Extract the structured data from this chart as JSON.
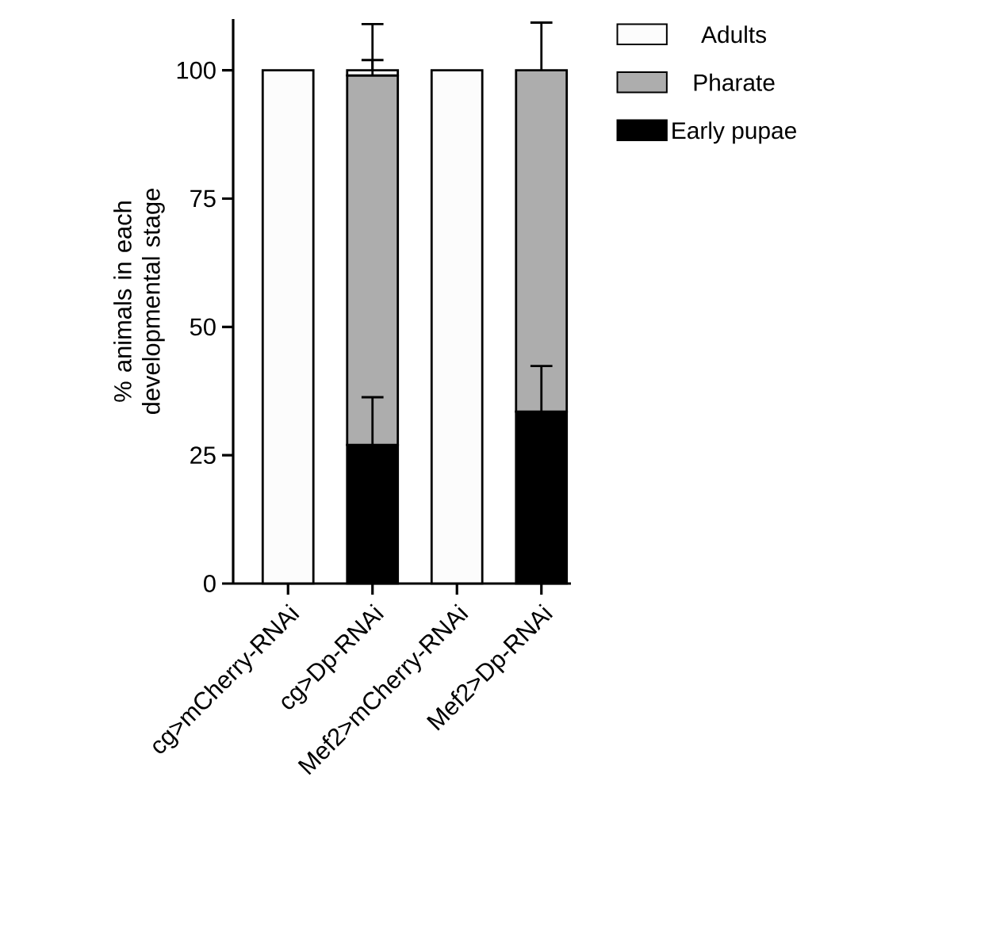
{
  "chart_data": {
    "type": "bar",
    "stacked": true,
    "ylabel": "% animals in each developmental stage",
    "categories": [
      "cg>mCherry-RNAi",
      "cg>Dp-RNAi",
      "Mef2>mCherry-RNAi",
      "Mef2>Dp-RNAi"
    ],
    "series": [
      {
        "name": "Early pupae",
        "color": "#000000",
        "values": [
          0,
          27,
          0,
          33.5
        ],
        "errors": [
          null,
          [
            27,
            36.3
          ],
          null,
          [
            33.5,
            42.4
          ]
        ]
      },
      {
        "name": "Pharate",
        "color": "#adadad",
        "values": [
          0,
          72,
          0,
          66.5
        ],
        "errors": [
          null,
          [
            99,
            109
          ],
          null,
          [
            100,
            109.3
          ]
        ]
      },
      {
        "name": "Adults",
        "color": "#fcfcfc",
        "values": [
          100,
          1,
          100,
          0
        ],
        "errors": [
          null,
          [
            100,
            102
          ],
          null,
          null
        ]
      }
    ],
    "ylim": [
      0,
      110
    ],
    "yticks": [
      0,
      25,
      50,
      75,
      100
    ],
    "grid": false,
    "legend": "right"
  }
}
